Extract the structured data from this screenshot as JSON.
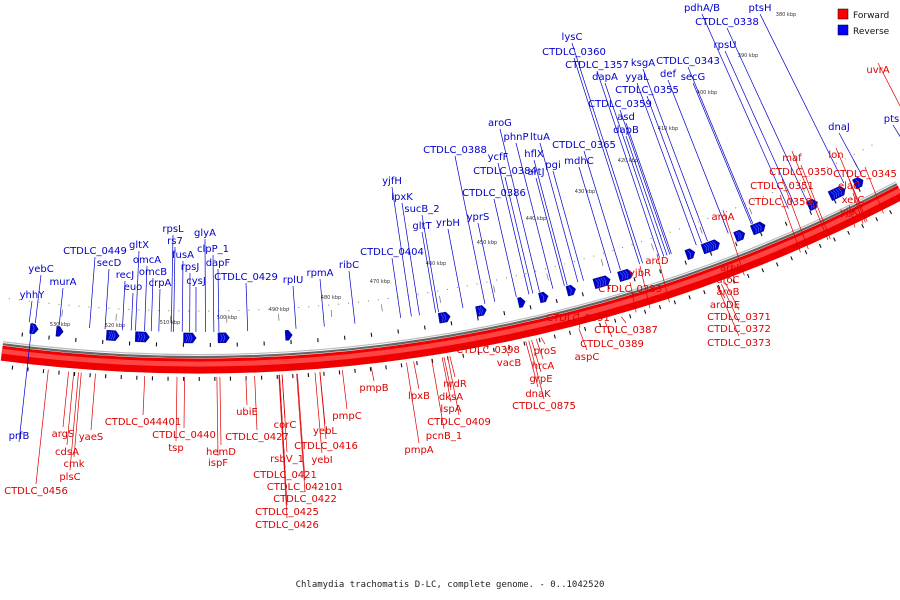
{
  "caption": "Chlamydia trachomatis D-LC, complete genome. - 0..1042520",
  "legend": [
    {
      "label": "Forward",
      "color": "#ff0000"
    },
    {
      "label": "Reverse",
      "color": "#0000ff"
    }
  ],
  "colors": {
    "forward": "#dd0000",
    "reverse": "#0000cc",
    "ring_outer": "#ee0000",
    "ring_inner": "#ff4444"
  },
  "ticks": [
    "380 kbp",
    "390 kbp",
    "400 kbp",
    "410 kbp",
    "420 kbp",
    "430 kbp",
    "440 kbp",
    "450 kbp",
    "460 kbp",
    "470 kbp",
    "480 kbp",
    "490 kbp",
    "500 kbp",
    "510 kbp",
    "520 kbp",
    "530 kbp"
  ],
  "reverse_genes": [
    {
      "label": "ptsH"
    },
    {
      "label": "pdhA/B"
    },
    {
      "label": "CTDLC_0338"
    },
    {
      "label": "ptsI"
    },
    {
      "label": "dnaJ"
    },
    {
      "label": "rpsU"
    },
    {
      "label": "lysC"
    },
    {
      "label": "CTDLC_0360"
    },
    {
      "label": "CTDLC_1357"
    },
    {
      "label": "ksgA"
    },
    {
      "label": "CTDLC_0343"
    },
    {
      "label": "dapA"
    },
    {
      "label": "yyaL"
    },
    {
      "label": "def"
    },
    {
      "label": "secG"
    },
    {
      "label": "CTDLC_0355"
    },
    {
      "label": "CTDLC_0359"
    },
    {
      "label": "asd"
    },
    {
      "label": "dapB"
    },
    {
      "label": "aroG"
    },
    {
      "label": "phnP"
    },
    {
      "label": "ltuA"
    },
    {
      "label": "CTDLC_0365"
    },
    {
      "label": "CTDLC_0388"
    },
    {
      "label": "ycfF"
    },
    {
      "label": "hflX"
    },
    {
      "label": "pgi"
    },
    {
      "label": "mdhC"
    },
    {
      "label": "CTDLC_0384"
    },
    {
      "label": "artJ"
    },
    {
      "label": "CTDLC_0386"
    },
    {
      "label": "yjfH"
    },
    {
      "label": "lpxK"
    },
    {
      "label": "sucB_2"
    },
    {
      "label": "gltT"
    },
    {
      "label": "yrbH"
    },
    {
      "label": "yprS"
    },
    {
      "label": "CTDLC_0404"
    },
    {
      "label": "ribC"
    },
    {
      "label": "rpmA"
    },
    {
      "label": "rplU"
    },
    {
      "label": "rpsL"
    },
    {
      "label": "glyA"
    },
    {
      "label": "rs7"
    },
    {
      "label": "clpP_1"
    },
    {
      "label": "fusA"
    },
    {
      "label": "rpsJ"
    },
    {
      "label": "dapF"
    },
    {
      "label": "CTDLC_0429"
    },
    {
      "label": "cysJ"
    },
    {
      "label": "gltX"
    },
    {
      "label": "CTDLC_0449"
    },
    {
      "label": "secD"
    },
    {
      "label": "omcA"
    },
    {
      "label": "recJ"
    },
    {
      "label": "omcB"
    },
    {
      "label": "euo"
    },
    {
      "label": "crpA"
    },
    {
      "label": "yebC"
    },
    {
      "label": "murA"
    },
    {
      "label": "yhhY"
    },
    {
      "label": "prfB"
    }
  ],
  "forward_genes": [
    {
      "label": "uvrA"
    },
    {
      "label": "lon"
    },
    {
      "label": "maf"
    },
    {
      "label": "CTDLC_0350"
    },
    {
      "label": "CTDLC_0345"
    },
    {
      "label": "CTDLC_0351"
    },
    {
      "label": "elaC"
    },
    {
      "label": "CTDLC_0358"
    },
    {
      "label": "xerC"
    },
    {
      "label": "yjjK"
    },
    {
      "label": "aroA"
    },
    {
      "label": "arcD"
    },
    {
      "label": "yjbR"
    },
    {
      "label": "aroL"
    },
    {
      "label": "aroC"
    },
    {
      "label": "aroB"
    },
    {
      "label": "aroDE"
    },
    {
      "label": "CTDLC_0371"
    },
    {
      "label": "CTDLC_0372"
    },
    {
      "label": "CTDLC_0373"
    },
    {
      "label": "CTDLC_0383"
    },
    {
      "label": "CTDLC_0391"
    },
    {
      "label": "CTDLC_0387"
    },
    {
      "label": "CTDLC_0389"
    },
    {
      "label": "CTDLC_0398"
    },
    {
      "label": "proS"
    },
    {
      "label": "vacB"
    },
    {
      "label": "hrcA"
    },
    {
      "label": "aspC"
    },
    {
      "label": "grpE"
    },
    {
      "label": "dnaK"
    },
    {
      "label": "CTDLC_0875"
    },
    {
      "label": "nrdR"
    },
    {
      "label": "dksA"
    },
    {
      "label": "lpxB"
    },
    {
      "label": "lspA"
    },
    {
      "label": "CTDLC_0409"
    },
    {
      "label": "pcnB_1"
    },
    {
      "label": "pmpA"
    },
    {
      "label": "pmpB"
    },
    {
      "label": "pmpC"
    },
    {
      "label": "yebL"
    },
    {
      "label": "CTDLC_0416"
    },
    {
      "label": "yebI"
    },
    {
      "label": "corC"
    },
    {
      "label": "CTDLC_0421"
    },
    {
      "label": "ubiE"
    },
    {
      "label": "CTDLC_042101"
    },
    {
      "label": "CTDLC_0422"
    },
    {
      "label": "rsbV_1"
    },
    {
      "label": "CTDLC_0427"
    },
    {
      "label": "CTDLC_0425"
    },
    {
      "label": "CTDLC_0426"
    },
    {
      "label": "hemD"
    },
    {
      "label": "ispF"
    },
    {
      "label": "CTDLC_0440"
    },
    {
      "label": "tsp"
    },
    {
      "label": "CTDLC_044401"
    },
    {
      "label": "argS"
    },
    {
      "label": "yaeS"
    },
    {
      "label": "cdsA"
    },
    {
      "label": "cmk"
    },
    {
      "label": "plsC"
    },
    {
      "label": "CTDLC_0456"
    }
  ]
}
